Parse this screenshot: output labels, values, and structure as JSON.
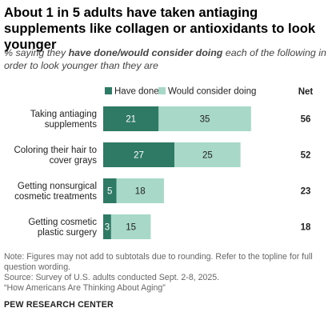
{
  "title": "About 1 in 5 adults have taken antiaging supplements like collagen or antioxidants to look younger",
  "subtitle": {
    "prefix": "% saying they ",
    "emphasis": "have done/would consider doing",
    "suffix": " each of the following in order to look younger than they are"
  },
  "colors": {
    "have_done": "#2f7a65",
    "would_consider": "#a8d8c8"
  },
  "chart_data": {
    "type": "bar",
    "orientation": "horizontal",
    "stacked": true,
    "categories": [
      [
        "Taking antiaging",
        "supplements"
      ],
      [
        "Coloring their hair to",
        "cover grays"
      ],
      [
        "Getting nonsurgical",
        "cosmetic treatments"
      ],
      [
        "Getting cosmetic",
        "plastic surgery"
      ]
    ],
    "series": [
      {
        "name": "Have done",
        "values": [
          21,
          27,
          5,
          3
        ]
      },
      {
        "name": "Would consider doing",
        "values": [
          35,
          25,
          18,
          15
        ]
      }
    ],
    "net_label": "Net",
    "net": [
      56,
      52,
      23,
      18
    ],
    "legend_position": "top",
    "xlim": [
      0,
      60
    ],
    "grid": false
  },
  "note": {
    "line1": "Note: Figures may not add to subtotals due to rounding. Refer to the topline for full question wording.",
    "line2": "Source: Survey of U.S. adults conducted Sept. 2-8, 2025.",
    "line3": "“How Americans Are Thinking About Aging”"
  },
  "footer": "PEW RESEARCH CENTER"
}
